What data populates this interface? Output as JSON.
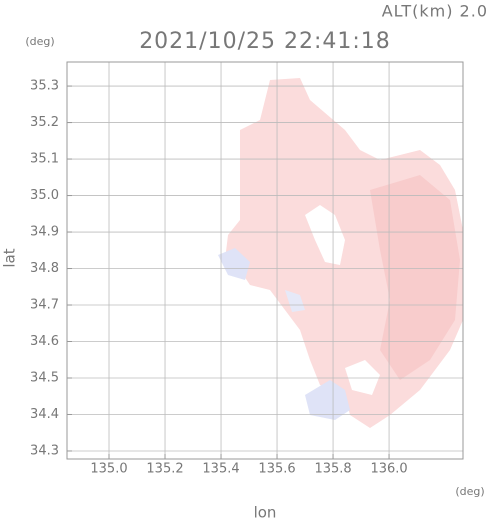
{
  "chart_data": {
    "type": "map",
    "title": "2021/10/25 22:41:18",
    "altitude_label": "ALT(km) 2.0",
    "x_label": "lon",
    "y_label": "lat",
    "x_unit": "(deg)",
    "y_unit": "(deg)",
    "xlim": [
      134.85,
      136.264
    ],
    "ylim": [
      34.278,
      35.366
    ],
    "xticks": [
      {
        "value": 135,
        "label": "135.0"
      },
      135.2,
      135.4,
      135.6,
      135.8,
      {
        "value": 136,
        "label": "136.0"
      }
    ],
    "yticks": [
      34.3,
      34.4,
      34.5,
      34.6,
      34.7,
      34.8,
      34.9,
      {
        "value": 35,
        "label": "35.0"
      },
      35.1,
      35.2,
      35.3
    ],
    "grid": true
  }
}
